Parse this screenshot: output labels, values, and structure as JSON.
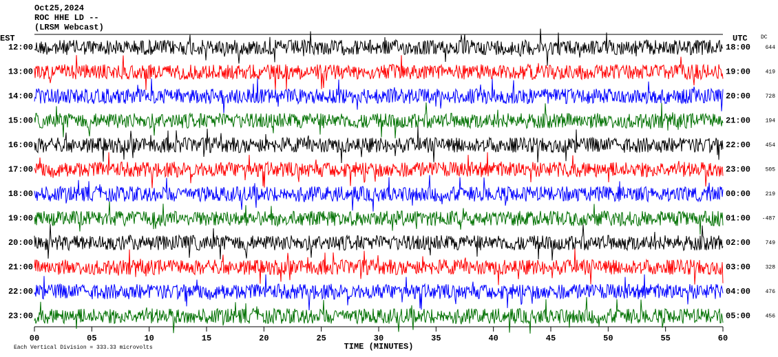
{
  "chart_data": {
    "type": "helicorder",
    "title": [
      "Oct25,2024",
      "ROC HHE LD --",
      "(LRSM Webcast)"
    ],
    "left_axis_title": "EST",
    "right_axis_title": "UTC",
    "dc_title": "DC",
    "rows": [
      {
        "est": "12:00",
        "utc": "18:00",
        "dc": 644,
        "color": "#000000"
      },
      {
        "est": "13:00",
        "utc": "19:00",
        "dc": 419,
        "color": "#ff0000"
      },
      {
        "est": "14:00",
        "utc": "20:00",
        "dc": 728,
        "color": "#0000ff"
      },
      {
        "est": "15:00",
        "utc": "21:00",
        "dc": 194,
        "color": "#007000"
      },
      {
        "est": "16:00",
        "utc": "22:00",
        "dc": 454,
        "color": "#000000"
      },
      {
        "est": "17:00",
        "utc": "23:00",
        "dc": 505,
        "color": "#ff0000"
      },
      {
        "est": "18:00",
        "utc": "00:00",
        "dc": 219,
        "color": "#0000ff"
      },
      {
        "est": "19:00",
        "utc": "01:00",
        "dc": -487,
        "color": "#007000"
      },
      {
        "est": "20:00",
        "utc": "02:00",
        "dc": 749,
        "color": "#000000"
      },
      {
        "est": "21:00",
        "utc": "03:00",
        "dc": 328,
        "color": "#ff0000"
      },
      {
        "est": "22:00",
        "utc": "04:00",
        "dc": 476,
        "color": "#0000ff"
      },
      {
        "est": "23:00",
        "utc": "05:00",
        "dc": 456,
        "color": "#007000"
      }
    ],
    "xlim": [
      0,
      60
    ],
    "xticks": [
      {
        "value": 0,
        "label": "00"
      },
      {
        "value": 5,
        "label": "05"
      },
      10,
      15,
      20,
      25,
      30,
      35,
      40,
      45,
      50,
      55,
      60
    ],
    "xlabel": "TIME (MINUTES)",
    "footnote": "Each Vertical Division =  333.33 microvolts"
  }
}
